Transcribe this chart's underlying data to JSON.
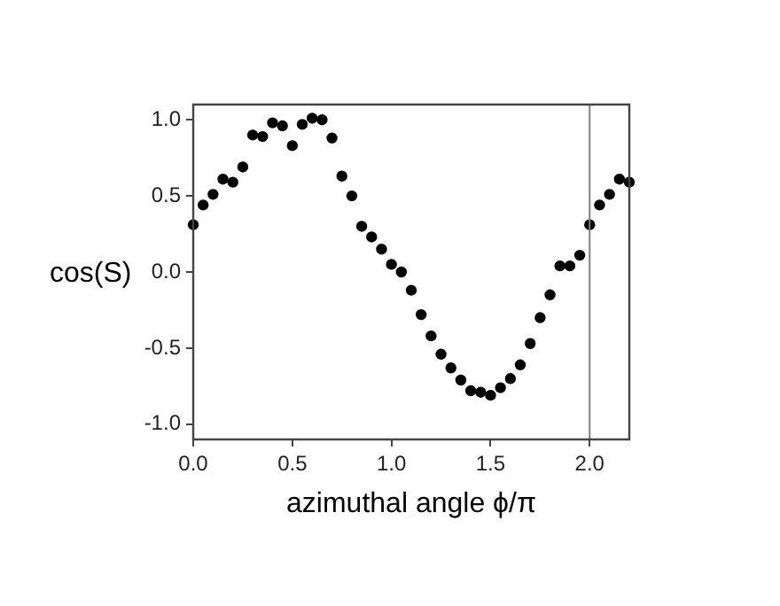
{
  "chart_data": {
    "type": "scatter",
    "xlabel": "azimuthal angle ϕ/π",
    "ylabel": "cos(S)",
    "x": [
      0,
      0.05,
      0.1,
      0.15,
      0.2,
      0.25,
      0.3,
      0.35,
      0.4,
      0.45,
      0.5,
      0.55,
      0.6,
      0.65,
      0.7,
      0.75,
      0.8,
      0.85,
      0.9,
      0.95,
      1.0,
      1.05,
      1.1,
      1.15,
      1.2,
      1.25,
      1.3,
      1.35,
      1.4,
      1.45,
      1.5,
      1.55,
      1.6,
      1.65,
      1.7,
      1.75,
      1.8,
      1.85,
      1.9,
      1.95,
      2.0,
      2.05,
      2.1,
      2.15,
      2.2
    ],
    "series": [
      {
        "color": "#000000",
        "values": [
          0.31,
          0.44,
          0.51,
          0.61,
          0.59,
          0.69,
          0.9,
          0.89,
          0.98,
          0.96,
          0.83,
          0.97,
          1.01,
          1.0,
          0.88,
          0.63,
          0.5,
          0.3,
          0.23,
          0.15,
          0.05,
          0.0,
          -0.12,
          -0.28,
          -0.42,
          -0.54,
          -0.63,
          -0.71,
          -0.78,
          -0.79,
          -0.81,
          -0.76,
          -0.7,
          -0.61,
          -0.47,
          -0.3,
          -0.15,
          0.04,
          0.04,
          0.11,
          0.31,
          0.44,
          0.51,
          0.61,
          0.59
        ]
      }
    ],
    "xlim": [
      0,
      2.2
    ],
    "ylim": [
      -1.1,
      1.1
    ],
    "xticks": [
      {
        "value": 0,
        "label": "0.0"
      },
      {
        "value": 0.5,
        "label": "0.5"
      },
      {
        "value": 1,
        "label": "1.0"
      },
      {
        "value": 1.5,
        "label": "1.5"
      },
      {
        "value": 2,
        "label": "2.0"
      }
    ],
    "yticks": [
      {
        "value": -1,
        "label": "-1.0"
      },
      {
        "value": -0.5,
        "label": "-0.5"
      },
      {
        "value": 0,
        "label": "0.0"
      },
      {
        "value": 0.5,
        "label": "0.5"
      },
      {
        "value": 1,
        "label": "1.0"
      }
    ],
    "ref_lines": [
      {
        "axis": "x",
        "value": 2.0,
        "color": "#808080"
      }
    ],
    "marker": "circle",
    "grid": false,
    "legend": false
  }
}
